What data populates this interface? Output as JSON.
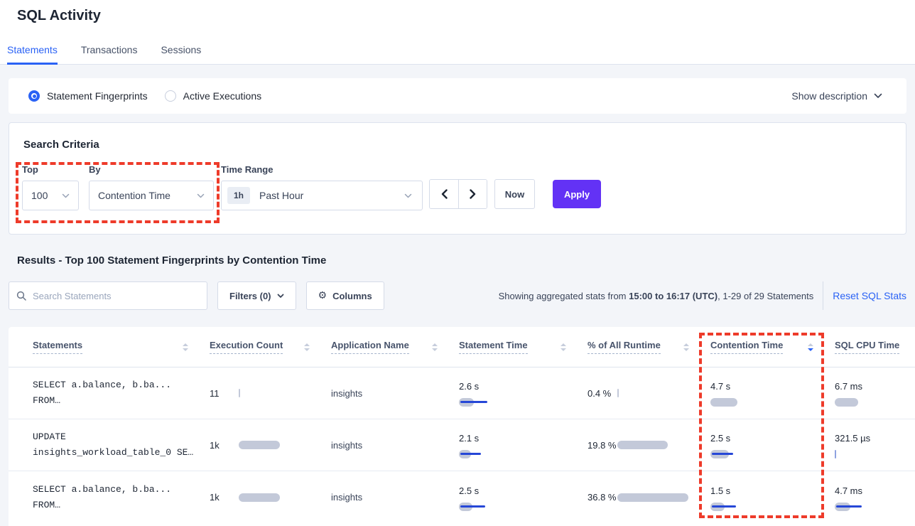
{
  "page_title": "SQL Activity",
  "tabs": {
    "statements": "Statements",
    "transactions": "Transactions",
    "sessions": "Sessions"
  },
  "view_mode": {
    "fingerprints_label": "Statement Fingerprints",
    "fingerprints_selected": true,
    "active_executions_label": "Active Executions",
    "active_executions_selected": false,
    "show_description_label": "Show description"
  },
  "search_criteria": {
    "title": "Search Criteria",
    "top_label": "Top",
    "top_value": "100",
    "by_label": "By",
    "by_value": "Contention Time",
    "time_range_label": "Time Range",
    "time_range_badge": "1h",
    "time_range_value": "Past Hour",
    "now_label": "Now",
    "apply_label": "Apply"
  },
  "results": {
    "heading": "Results - Top 100 Statement Fingerprints by Contention Time",
    "search_placeholder": "Search Statements",
    "filters_label": "Filters (0)",
    "columns_label": "Columns",
    "stats_text_prefix": "Showing aggregated stats from ",
    "stats_text_bold": "15:00 to 16:17 (UTC)",
    "stats_text_suffix": ", 1-29 of 29 Statements",
    "reset_link": "Reset SQL Stats"
  },
  "table": {
    "headers": [
      {
        "label": "Statements",
        "sorted": "none"
      },
      {
        "label": "Execution Count",
        "sorted": "none"
      },
      {
        "label": "Application Name",
        "sorted": "none"
      },
      {
        "label": "Statement Time",
        "sorted": "none"
      },
      {
        "label": "% of All Runtime",
        "sorted": "none"
      },
      {
        "label": "Contention Time",
        "sorted": "desc"
      },
      {
        "label": "SQL CPU Time",
        "sorted": "none"
      }
    ],
    "rows": [
      {
        "sql_line1": "SELECT a.balance, b.ba...",
        "sql_line2": "FROM…",
        "execution_count": "11",
        "execution_bar": 2,
        "application": "insights",
        "statement_time": "2.6 s",
        "statement_time_bar": 21,
        "statement_time_line": 38,
        "pct_runtime": "0.4 %",
        "pct_runtime_bar": 2,
        "contention_time": "4.7 s",
        "contention_bar": 38,
        "contention_line": 0,
        "cpu_time": "6.7 ms",
        "cpu_bar": 33,
        "cpu_line": 0
      },
      {
        "sql_line1": "UPDATE",
        "sql_line2": "insights_workload_table_0 SE…",
        "execution_count": "1k",
        "execution_bar": 58,
        "application": "insights",
        "statement_time": "2.1 s",
        "statement_time_bar": 17,
        "statement_time_line": 29,
        "pct_runtime": "19.8 %",
        "pct_runtime_bar": 71,
        "contention_time": "2.5 s",
        "contention_bar": 26,
        "contention_line": 30,
        "cpu_time": "321.5 µs",
        "cpu_bar": 2,
        "cpu_line": 0,
        "cpu_bar_color": "#8ea2e0"
      },
      {
        "sql_line1": "SELECT a.balance, b.ba...",
        "sql_line2": "FROM…",
        "execution_count": "1k",
        "execution_bar": 58,
        "application": "insights",
        "statement_time": "2.5 s",
        "statement_time_bar": 19,
        "statement_time_line": 35,
        "pct_runtime": "36.8 %",
        "pct_runtime_bar": 100,
        "contention_time": "1.5 s",
        "contention_bar": 20,
        "contention_line": 34,
        "cpu_time": "4.7 ms",
        "cpu_bar": 22,
        "cpu_line": 36
      }
    ]
  },
  "colors": {
    "accent_blue": "#2a62f5",
    "apply_purple": "#6332f5",
    "annotation_red": "#ee3b2a",
    "bar_gray": "#c3c9d9",
    "bar_line_blue": "#2647d7"
  }
}
